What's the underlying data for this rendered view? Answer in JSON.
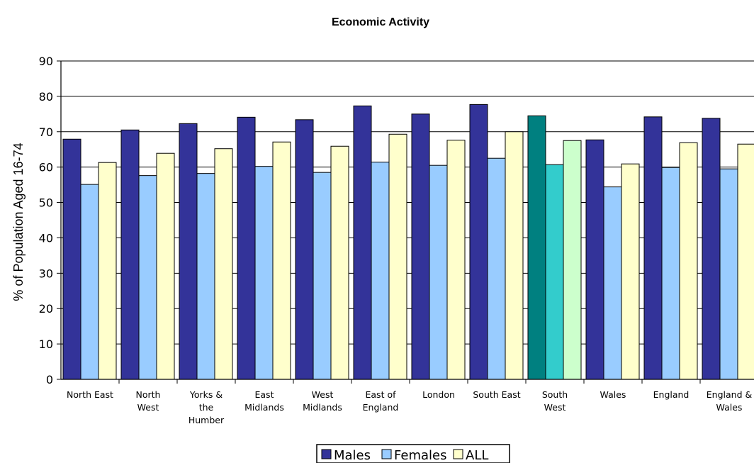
{
  "chart_data": {
    "type": "bar",
    "title": "Economic Activity",
    "xlabel": "",
    "ylabel": "% of Population Aged 16-74",
    "ylim": [
      0,
      90
    ],
    "yticks": [
      0,
      10,
      20,
      30,
      40,
      50,
      60,
      70,
      80,
      90
    ],
    "grid": "horizontal",
    "legend_position": "bottom",
    "categories": [
      "North East",
      "North West",
      "Yorks & the Humber",
      "East Midlands",
      "West Midlands",
      "East of England",
      "London",
      "South East",
      "South West",
      "Wales",
      "England",
      "England & Wales"
    ],
    "category_label_lines": [
      [
        "North East"
      ],
      [
        "North",
        "West"
      ],
      [
        "Yorks &",
        "the",
        "Humber"
      ],
      [
        "East",
        "Midlands"
      ],
      [
        "West",
        "Midlands"
      ],
      [
        "East of",
        "England"
      ],
      [
        "London"
      ],
      [
        "South East"
      ],
      [
        "South",
        "West"
      ],
      [
        "Wales"
      ],
      [
        "England"
      ],
      [
        "England &",
        "Wales"
      ]
    ],
    "series": [
      {
        "name": "Males",
        "color": "#333399",
        "values": [
          67.9,
          70.5,
          72.3,
          74.1,
          73.4,
          77.3,
          75.0,
          77.7,
          74.5,
          67.7,
          74.2,
          73.8
        ]
      },
      {
        "name": "Females",
        "color": "#99CCFF",
        "values": [
          55.1,
          57.6,
          58.2,
          60.2,
          58.5,
          61.4,
          60.5,
          62.5,
          60.7,
          54.4,
          59.9,
          59.5
        ]
      },
      {
        "name": "ALL",
        "color": "#FFFFCC",
        "values": [
          61.3,
          63.9,
          65.2,
          67.1,
          65.9,
          69.3,
          67.6,
          70.0,
          67.5,
          60.9,
          66.9,
          66.5
        ]
      }
    ],
    "highlight": {
      "category": "South West",
      "colors": [
        "#008080",
        "#33CCCC",
        "#CCFFCC"
      ]
    }
  }
}
